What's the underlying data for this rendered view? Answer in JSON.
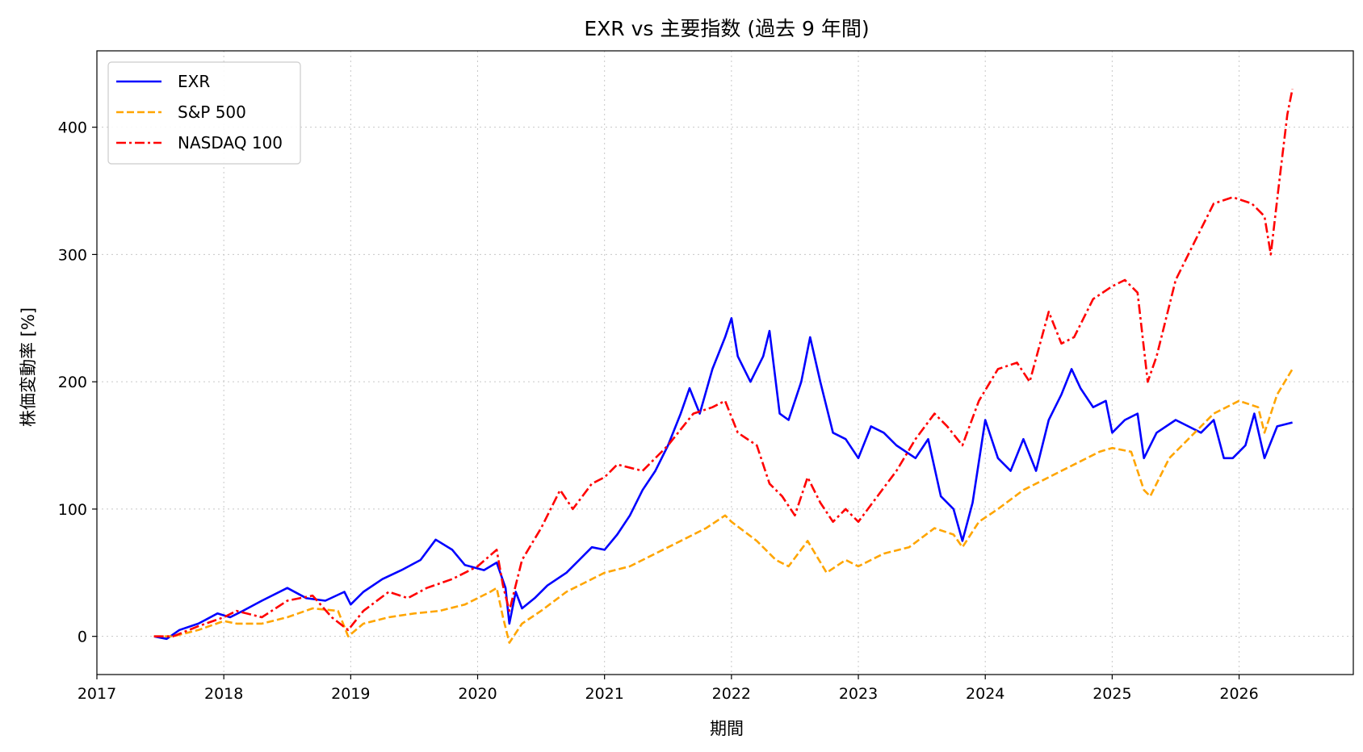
{
  "chart_data": {
    "type": "line",
    "title": "EXR vs 主要指数 (過去 9 年間)",
    "xlabel": "期間",
    "ylabel": "株価変動率 [%]",
    "xlim": [
      2017.0,
      2026.9
    ],
    "ylim": [
      -30,
      460
    ],
    "x_ticks": [
      2017,
      2018,
      2019,
      2020,
      2021,
      2022,
      2023,
      2024,
      2025,
      2026
    ],
    "y_ticks": [
      0,
      100,
      200,
      300,
      400
    ],
    "grid": true,
    "legend_position": "top-left",
    "series": [
      {
        "name": "EXR",
        "color": "#0000ff",
        "style": "solid",
        "points": [
          [
            2017.45,
            0
          ],
          [
            2017.55,
            -2
          ],
          [
            2017.65,
            5
          ],
          [
            2017.8,
            10
          ],
          [
            2017.95,
            18
          ],
          [
            2018.05,
            15
          ],
          [
            2018.15,
            20
          ],
          [
            2018.3,
            28
          ],
          [
            2018.5,
            38
          ],
          [
            2018.65,
            30
          ],
          [
            2018.8,
            28
          ],
          [
            2018.95,
            35
          ],
          [
            2019.0,
            25
          ],
          [
            2019.1,
            35
          ],
          [
            2019.25,
            45
          ],
          [
            2019.4,
            52
          ],
          [
            2019.55,
            60
          ],
          [
            2019.67,
            76
          ],
          [
            2019.8,
            68
          ],
          [
            2019.9,
            56
          ],
          [
            2020.05,
            52
          ],
          [
            2020.15,
            58
          ],
          [
            2020.22,
            38
          ],
          [
            2020.25,
            10
          ],
          [
            2020.3,
            35
          ],
          [
            2020.35,
            22
          ],
          [
            2020.45,
            30
          ],
          [
            2020.55,
            40
          ],
          [
            2020.7,
            50
          ],
          [
            2020.8,
            60
          ],
          [
            2020.9,
            70
          ],
          [
            2021.0,
            68
          ],
          [
            2021.1,
            80
          ],
          [
            2021.2,
            95
          ],
          [
            2021.3,
            115
          ],
          [
            2021.4,
            130
          ],
          [
            2021.5,
            150
          ],
          [
            2021.6,
            175
          ],
          [
            2021.67,
            195
          ],
          [
            2021.75,
            175
          ],
          [
            2021.85,
            210
          ],
          [
            2021.95,
            235
          ],
          [
            2022.0,
            250
          ],
          [
            2022.05,
            220
          ],
          [
            2022.15,
            200
          ],
          [
            2022.25,
            220
          ],
          [
            2022.3,
            240
          ],
          [
            2022.38,
            175
          ],
          [
            2022.45,
            170
          ],
          [
            2022.55,
            200
          ],
          [
            2022.62,
            235
          ],
          [
            2022.7,
            200
          ],
          [
            2022.8,
            160
          ],
          [
            2022.9,
            155
          ],
          [
            2023.0,
            140
          ],
          [
            2023.1,
            165
          ],
          [
            2023.2,
            160
          ],
          [
            2023.3,
            150
          ],
          [
            2023.45,
            140
          ],
          [
            2023.55,
            155
          ],
          [
            2023.65,
            110
          ],
          [
            2023.75,
            100
          ],
          [
            2023.82,
            75
          ],
          [
            2023.9,
            105
          ],
          [
            2024.0,
            170
          ],
          [
            2024.1,
            140
          ],
          [
            2024.2,
            130
          ],
          [
            2024.3,
            155
          ],
          [
            2024.4,
            130
          ],
          [
            2024.5,
            170
          ],
          [
            2024.6,
            190
          ],
          [
            2024.68,
            210
          ],
          [
            2024.75,
            195
          ],
          [
            2024.85,
            180
          ],
          [
            2024.95,
            185
          ],
          [
            2025.0,
            160
          ],
          [
            2025.1,
            170
          ],
          [
            2025.2,
            175
          ],
          [
            2025.25,
            140
          ],
          [
            2025.35,
            160
          ],
          [
            2025.5,
            170
          ],
          [
            2025.6,
            165
          ],
          [
            2025.7,
            160
          ],
          [
            2025.8,
            170
          ],
          [
            2025.88,
            140
          ],
          [
            2025.95,
            140
          ],
          [
            2026.05,
            150
          ],
          [
            2026.12,
            175
          ],
          [
            2026.2,
            140
          ],
          [
            2026.3,
            165
          ],
          [
            2026.42,
            168
          ]
        ]
      },
      {
        "name": "S&P 500",
        "color": "#ffa500",
        "style": "dashed",
        "points": [
          [
            2017.45,
            0
          ],
          [
            2017.6,
            0
          ],
          [
            2017.8,
            5
          ],
          [
            2018.0,
            12
          ],
          [
            2018.1,
            10
          ],
          [
            2018.3,
            10
          ],
          [
            2018.5,
            15
          ],
          [
            2018.7,
            22
          ],
          [
            2018.9,
            20
          ],
          [
            2018.98,
            0
          ],
          [
            2019.1,
            10
          ],
          [
            2019.3,
            15
          ],
          [
            2019.5,
            18
          ],
          [
            2019.7,
            20
          ],
          [
            2019.9,
            25
          ],
          [
            2020.1,
            35
          ],
          [
            2020.15,
            38
          ],
          [
            2020.2,
            15
          ],
          [
            2020.25,
            -5
          ],
          [
            2020.35,
            10
          ],
          [
            2020.5,
            20
          ],
          [
            2020.7,
            35
          ],
          [
            2020.9,
            45
          ],
          [
            2021.0,
            50
          ],
          [
            2021.2,
            55
          ],
          [
            2021.4,
            65
          ],
          [
            2021.6,
            75
          ],
          [
            2021.8,
            85
          ],
          [
            2021.95,
            95
          ],
          [
            2022.0,
            90
          ],
          [
            2022.2,
            75
          ],
          [
            2022.35,
            60
          ],
          [
            2022.45,
            55
          ],
          [
            2022.6,
            75
          ],
          [
            2022.75,
            50
          ],
          [
            2022.9,
            60
          ],
          [
            2023.0,
            55
          ],
          [
            2023.2,
            65
          ],
          [
            2023.4,
            70
          ],
          [
            2023.6,
            85
          ],
          [
            2023.75,
            80
          ],
          [
            2023.82,
            70
          ],
          [
            2023.95,
            90
          ],
          [
            2024.1,
            100
          ],
          [
            2024.3,
            115
          ],
          [
            2024.5,
            125
          ],
          [
            2024.7,
            135
          ],
          [
            2024.9,
            145
          ],
          [
            2025.0,
            148
          ],
          [
            2025.15,
            145
          ],
          [
            2025.25,
            115
          ],
          [
            2025.3,
            110
          ],
          [
            2025.45,
            140
          ],
          [
            2025.6,
            155
          ],
          [
            2025.8,
            175
          ],
          [
            2026.0,
            185
          ],
          [
            2026.15,
            180
          ],
          [
            2026.2,
            160
          ],
          [
            2026.3,
            190
          ],
          [
            2026.42,
            210
          ]
        ]
      },
      {
        "name": "NASDAQ 100",
        "color": "#ff0000",
        "style": "dashdot",
        "points": [
          [
            2017.45,
            0
          ],
          [
            2017.6,
            0
          ],
          [
            2017.8,
            8
          ],
          [
            2018.0,
            15
          ],
          [
            2018.1,
            20
          ],
          [
            2018.3,
            15
          ],
          [
            2018.5,
            28
          ],
          [
            2018.7,
            32
          ],
          [
            2018.85,
            15
          ],
          [
            2018.98,
            5
          ],
          [
            2019.1,
            20
          ],
          [
            2019.3,
            35
          ],
          [
            2019.45,
            30
          ],
          [
            2019.6,
            38
          ],
          [
            2019.8,
            45
          ],
          [
            2020.0,
            55
          ],
          [
            2020.15,
            68
          ],
          [
            2020.2,
            40
          ],
          [
            2020.25,
            20
          ],
          [
            2020.35,
            60
          ],
          [
            2020.5,
            85
          ],
          [
            2020.65,
            115
          ],
          [
            2020.75,
            100
          ],
          [
            2020.9,
            120
          ],
          [
            2021.0,
            125
          ],
          [
            2021.1,
            135
          ],
          [
            2021.3,
            130
          ],
          [
            2021.5,
            150
          ],
          [
            2021.7,
            175
          ],
          [
            2021.85,
            180
          ],
          [
            2021.95,
            185
          ],
          [
            2022.05,
            160
          ],
          [
            2022.2,
            150
          ],
          [
            2022.3,
            120
          ],
          [
            2022.4,
            110
          ],
          [
            2022.5,
            95
          ],
          [
            2022.6,
            125
          ],
          [
            2022.7,
            105
          ],
          [
            2022.8,
            90
          ],
          [
            2022.9,
            100
          ],
          [
            2023.0,
            90
          ],
          [
            2023.15,
            110
          ],
          [
            2023.3,
            130
          ],
          [
            2023.45,
            155
          ],
          [
            2023.6,
            175
          ],
          [
            2023.7,
            165
          ],
          [
            2023.82,
            150
          ],
          [
            2023.95,
            185
          ],
          [
            2024.1,
            210
          ],
          [
            2024.25,
            215
          ],
          [
            2024.35,
            200
          ],
          [
            2024.5,
            255
          ],
          [
            2024.6,
            230
          ],
          [
            2024.7,
            235
          ],
          [
            2024.85,
            265
          ],
          [
            2025.0,
            275
          ],
          [
            2025.1,
            280
          ],
          [
            2025.2,
            270
          ],
          [
            2025.28,
            200
          ],
          [
            2025.35,
            220
          ],
          [
            2025.5,
            280
          ],
          [
            2025.65,
            310
          ],
          [
            2025.8,
            340
          ],
          [
            2025.95,
            345
          ],
          [
            2026.1,
            340
          ],
          [
            2026.2,
            330
          ],
          [
            2026.25,
            300
          ],
          [
            2026.32,
            360
          ],
          [
            2026.38,
            410
          ],
          [
            2026.42,
            430
          ]
        ]
      }
    ]
  }
}
